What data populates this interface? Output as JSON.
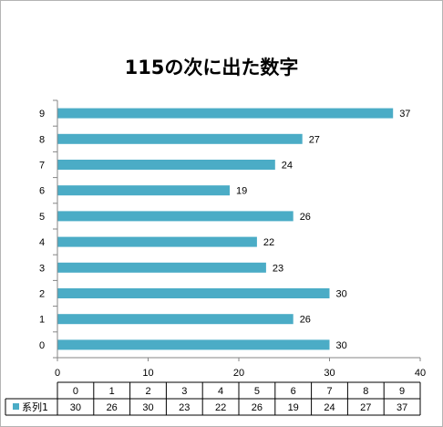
{
  "chart_data": {
    "type": "bar",
    "orientation": "horizontal",
    "title": "115の次に出た数字",
    "categories": [
      "0",
      "1",
      "2",
      "3",
      "4",
      "5",
      "6",
      "7",
      "8",
      "9"
    ],
    "series": [
      {
        "name": "系列1",
        "values": [
          30,
          26,
          30,
          23,
          22,
          26,
          19,
          24,
          27,
          37
        ]
      }
    ],
    "xlim": [
      0,
      40
    ],
    "x_ticks": [
      "0",
      "10",
      "20",
      "30",
      "40"
    ],
    "grid": false,
    "data_labels": true,
    "data_table": true,
    "legend_position": "data-table",
    "colors": {
      "bar": "#4bacc6",
      "axis": "#868686",
      "table_border": "#000000"
    }
  }
}
